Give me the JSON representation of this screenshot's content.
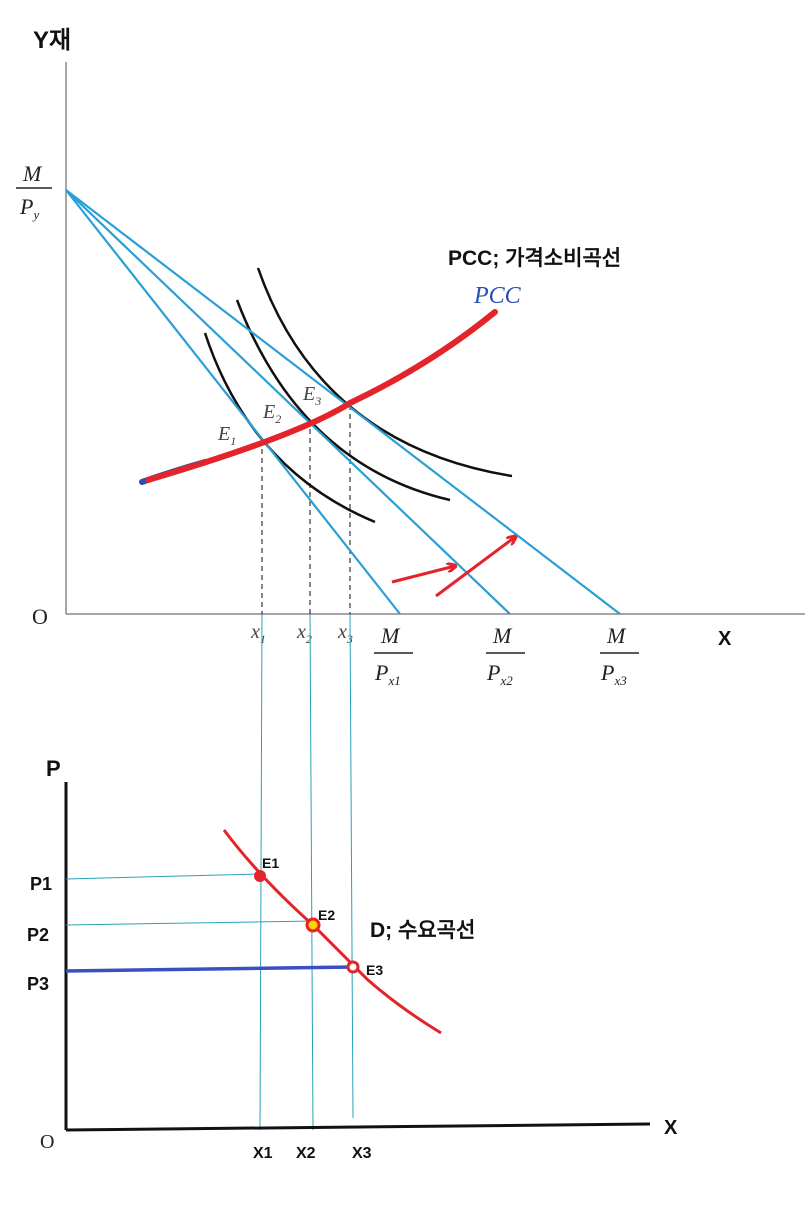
{
  "top": {
    "y_axis_label": "Y재",
    "origin": "O",
    "x_axis_label": "X",
    "intercept_y": {
      "num": "M",
      "den_main": "P",
      "den_sub": "y"
    },
    "intercepts_x": [
      {
        "num": "M",
        "den_main": "P",
        "den_sub": "x1"
      },
      {
        "num": "M",
        "den_main": "P",
        "den_sub": "x2"
      },
      {
        "num": "M",
        "den_main": "P",
        "den_sub": "x3"
      }
    ],
    "quantities": [
      {
        "main": "x",
        "sub": "1"
      },
      {
        "main": "x",
        "sub": "2"
      },
      {
        "main": "x",
        "sub": "3"
      }
    ],
    "equilibria": [
      {
        "main": "E",
        "sub": "1"
      },
      {
        "main": "E",
        "sub": "2"
      },
      {
        "main": "E",
        "sub": "3"
      }
    ],
    "pcc_caption": "PCC; 가격소비곡선",
    "pcc_label": "PCC",
    "colors": {
      "budget": "#2a9fd6",
      "pcc": "#e3242b",
      "pcc_tail": "#2b4fb0",
      "indifference": "#111111",
      "arrow": "#e3242b",
      "guide": "#2a9fd6"
    }
  },
  "bottom": {
    "y_axis_label": "P",
    "origin": "O",
    "x_axis_label": "X",
    "prices": [
      "P1",
      "P2",
      "P3"
    ],
    "quantities": [
      "X1",
      "X2",
      "X3"
    ],
    "points": [
      "E1",
      "E2",
      "E3"
    ],
    "demand_caption": "D; 수요곡선",
    "colors": {
      "demand": "#e3242b",
      "highlight": "#ffd600",
      "p3_line": "#3a4fc2",
      "guide": "#2aa0b8"
    }
  }
}
